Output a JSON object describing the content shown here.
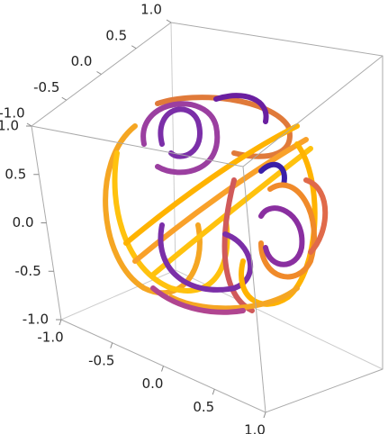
{
  "chart_data": {
    "type": "parametric3d",
    "axis1": {
      "lim": [
        -1,
        1
      ],
      "ticks": [
        {
          "value": -1,
          "label": "-1.0"
        },
        {
          "value": -0.5,
          "label": "-0.5"
        },
        {
          "value": 0,
          "label": "0.0"
        },
        {
          "value": 0.5,
          "label": "0.5"
        },
        {
          "value": 1,
          "label": "1.0"
        }
      ]
    },
    "axis2": {
      "lim": [
        -1,
        1
      ],
      "ticks": [
        {
          "value": -1,
          "label": "-1.0"
        },
        {
          "value": -0.5,
          "label": "-0.5"
        },
        {
          "value": 0,
          "label": "0.0"
        },
        {
          "value": 0.5,
          "label": "0.5"
        },
        {
          "value": 1,
          "label": "1.0"
        }
      ]
    },
    "axis3": {
      "lim": [
        -1,
        1
      ],
      "ticks": [
        {
          "value": -1,
          "label": "-1.0"
        },
        {
          "value": -0.5,
          "label": "-0.5"
        },
        {
          "value": 0,
          "label": "0.0"
        },
        {
          "value": 0.5,
          "label": "0.5"
        },
        {
          "value": 1,
          "label": "1.0"
        }
      ]
    }
  }
}
